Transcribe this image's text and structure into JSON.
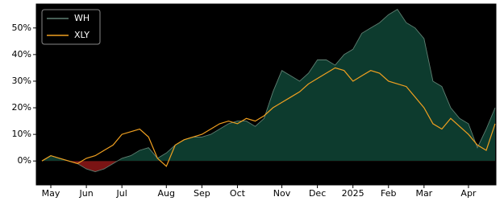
{
  "chart_data": {
    "type": "line",
    "categories": [
      null,
      "May",
      null,
      null,
      null,
      "Jun",
      null,
      null,
      null,
      "Jul",
      null,
      null,
      null,
      null,
      "Aug",
      null,
      null,
      null,
      "Sep",
      null,
      null,
      null,
      "Oct",
      null,
      null,
      null,
      null,
      "Nov",
      null,
      null,
      null,
      "Dec",
      null,
      null,
      null,
      "2025",
      null,
      null,
      null,
      "Feb",
      null,
      null,
      null,
      "Mar",
      null,
      null,
      null,
      null,
      "Apr",
      null,
      null,
      null
    ],
    "series": [
      {
        "name": "WH",
        "color": "#5f7f72",
        "fill_positive": "#0d3b2e",
        "fill_negative": "#7a1414",
        "values": [
          0,
          2,
          1,
          0,
          -1,
          -3,
          -4,
          -3,
          -1,
          1,
          2,
          4,
          5,
          1,
          3,
          6,
          8,
          9,
          9,
          10,
          12,
          14,
          15,
          15,
          13,
          16,
          26,
          34,
          32,
          30,
          33,
          38,
          38,
          36,
          40,
          42,
          48,
          50,
          52,
          55,
          57,
          52,
          50,
          46,
          30,
          28,
          20,
          16,
          14,
          5,
          12,
          20
        ]
      },
      {
        "name": "XLY",
        "color": "#f0a020",
        "values": [
          0,
          2,
          1,
          0,
          -1,
          1,
          2,
          4,
          6,
          10,
          11,
          12,
          9,
          1,
          -2,
          6,
          8,
          9,
          10,
          12,
          14,
          15,
          14,
          16,
          15,
          17,
          20,
          22,
          24,
          26,
          29,
          31,
          33,
          35,
          34,
          30,
          32,
          34,
          33,
          30,
          29,
          28,
          24,
          20,
          14,
          12,
          16,
          13,
          10,
          6,
          4,
          14
        ]
      }
    ],
    "ylim": [
      -9,
      59
    ],
    "yticks": [
      {
        "value": 0,
        "label": "0%"
      },
      {
        "value": 10,
        "label": "10%"
      },
      {
        "value": 20,
        "label": "20%"
      },
      {
        "value": 30,
        "label": "30%"
      },
      {
        "value": 40,
        "label": "40%"
      },
      {
        "value": 50,
        "label": "50%"
      }
    ],
    "legend": "upper left"
  }
}
